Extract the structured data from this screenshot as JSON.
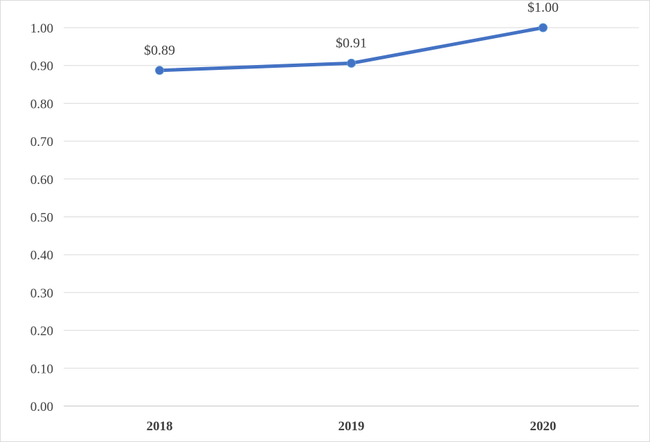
{
  "chart_data": {
    "type": "line",
    "categories": [
      "2018",
      "2019",
      "2020"
    ],
    "series": [
      {
        "values": [
          0.887,
          0.906,
          1.0
        ],
        "data_labels": [
          "$0.89",
          "$0.91",
          "$1.00"
        ],
        "color": "#4472c4"
      }
    ],
    "y_ticks": [
      "0.00",
      "0.10",
      "0.20",
      "0.30",
      "0.40",
      "0.50",
      "0.60",
      "0.70",
      "0.80",
      "0.90",
      "1.00"
    ],
    "ylim": [
      0,
      1.0
    ],
    "grid": true,
    "legend": "none",
    "title": "",
    "xlabel": "",
    "ylabel": ""
  }
}
